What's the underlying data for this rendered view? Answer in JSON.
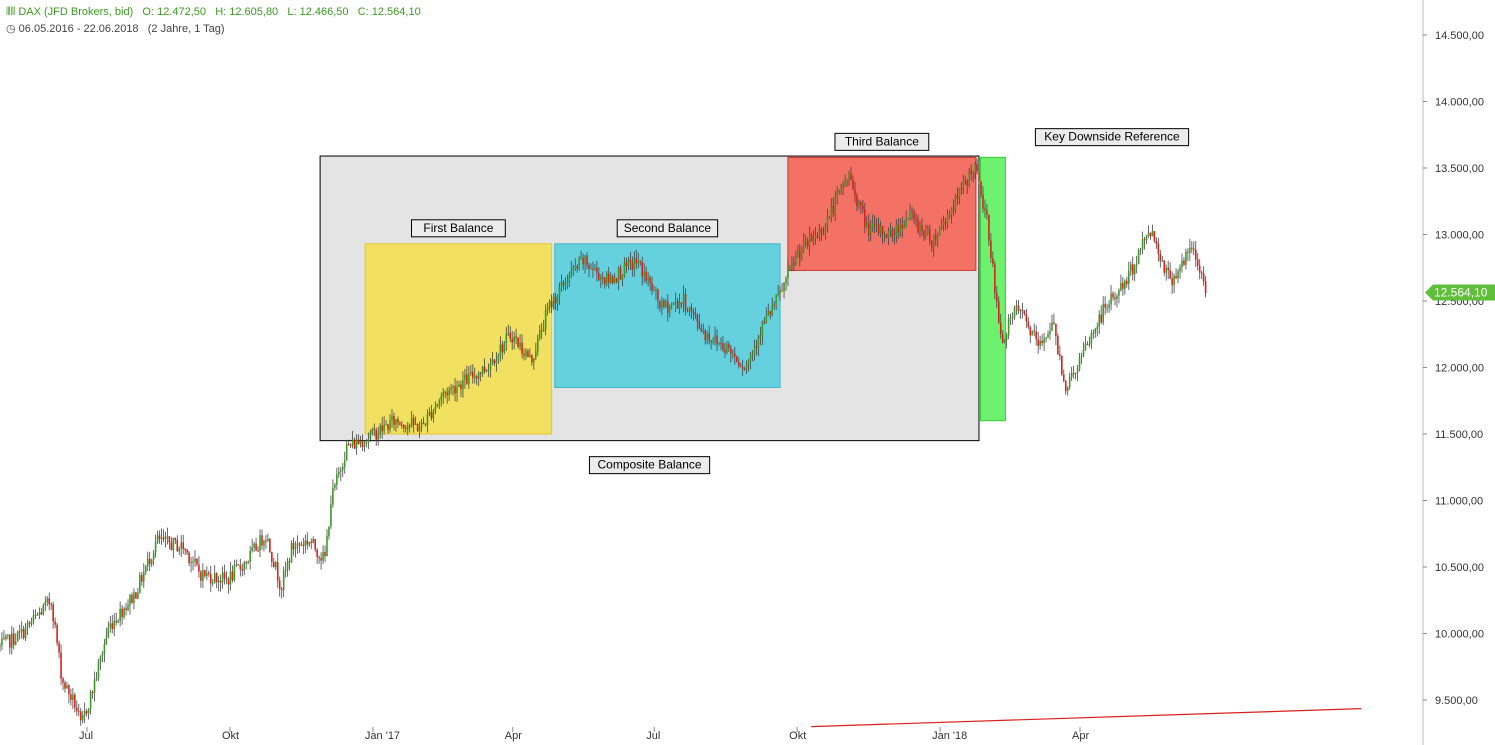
{
  "header": {
    "instrument": "DAX (JFD Brokers, bid)",
    "open": "O: 12.472,50",
    "high": "H: 12.605,80",
    "low": "L: 12.466,50",
    "close": "C: 12.564,10",
    "range": "06.05.2016 - 22.06.2018",
    "span": "(2 Jahre, 1 Tag)"
  },
  "colors": {
    "up": "#3c9a23",
    "down": "#d9221c",
    "last_price_tag": "#5fbf3a"
  },
  "chart_data": {
    "type": "candlestick",
    "x_ticks": [
      "Jul",
      "Okt",
      "Jan '17",
      "Apr",
      "Jul",
      "Okt",
      "Jan '18",
      "Apr"
    ],
    "y_ticks": [
      "14.500,00",
      "14.000,00",
      "13.500,00",
      "13.000,00",
      "12.500,00",
      "12.000,00",
      "11.500,00",
      "11.000,00",
      "10.500,00",
      "10.000,00",
      "9.500,00"
    ],
    "ylim": [
      9300,
      14750
    ],
    "last_price": "12.564,10",
    "price_path": [
      [
        "2016-05-06",
        9900
      ],
      [
        "2016-05-20",
        10000
      ],
      [
        "2016-06-08",
        10250
      ],
      [
        "2016-06-15",
        9650
      ],
      [
        "2016-06-24",
        9450
      ],
      [
        "2016-06-27",
        9300
      ],
      [
        "2016-07-04",
        9550
      ],
      [
        "2016-07-15",
        10050
      ],
      [
        "2016-08-01",
        10300
      ],
      [
        "2016-08-15",
        10700
      ],
      [
        "2016-09-01",
        10650
      ],
      [
        "2016-09-12",
        10450
      ],
      [
        "2016-09-29",
        10400
      ],
      [
        "2016-10-12",
        10550
      ],
      [
        "2016-10-24",
        10750
      ],
      [
        "2016-11-03",
        10350
      ],
      [
        "2016-11-10",
        10650
      ],
      [
        "2016-11-21",
        10700
      ],
      [
        "2016-12-01",
        10550
      ],
      [
        "2016-12-05",
        11000
      ],
      [
        "2016-12-15",
        11400
      ],
      [
        "2016-12-30",
        11480
      ],
      [
        "2017-01-15",
        11600
      ],
      [
        "2017-02-01",
        11550
      ],
      [
        "2017-02-15",
        11800
      ],
      [
        "2017-03-01",
        11900
      ],
      [
        "2017-03-15",
        12000
      ],
      [
        "2017-03-31",
        12250
      ],
      [
        "2017-04-13",
        12050
      ],
      [
        "2017-04-24",
        12450
      ],
      [
        "2017-05-08",
        12700
      ],
      [
        "2017-05-16",
        12800
      ],
      [
        "2017-06-01",
        12650
      ],
      [
        "2017-06-20",
        12800
      ],
      [
        "2017-07-06",
        12450
      ],
      [
        "2017-07-20",
        12500
      ],
      [
        "2017-08-03",
        12250
      ],
      [
        "2017-08-17",
        12150
      ],
      [
        "2017-08-29",
        12000
      ],
      [
        "2017-09-08",
        12300
      ],
      [
        "2017-09-20",
        12550
      ],
      [
        "2017-10-01",
        12850
      ],
      [
        "2017-10-18",
        13050
      ],
      [
        "2017-11-03",
        13450
      ],
      [
        "2017-11-15",
        13050
      ],
      [
        "2017-12-01",
        13000
      ],
      [
        "2017-12-12",
        13150
      ],
      [
        "2017-12-27",
        12950
      ],
      [
        "2018-01-11",
        13250
      ],
      [
        "2018-01-23",
        13520
      ],
      [
        "2018-02-01",
        13050
      ],
      [
        "2018-02-09",
        12200
      ],
      [
        "2018-02-20",
        12450
      ],
      [
        "2018-03-06",
        12150
      ],
      [
        "2018-03-14",
        12350
      ],
      [
        "2018-03-23",
        11850
      ],
      [
        "2018-04-03",
        12100
      ],
      [
        "2018-04-17",
        12450
      ],
      [
        "2018-05-01",
        12650
      ],
      [
        "2018-05-16",
        13050
      ],
      [
        "2018-05-29",
        12650
      ],
      [
        "2018-06-07",
        12800
      ],
      [
        "2018-06-12",
        12900
      ],
      [
        "2018-06-22",
        12564
      ]
    ],
    "annotations": [
      {
        "label": "Composite Balance",
        "color": "#e4e4e4",
        "border": "#000000",
        "x": [
          "2016-11-28",
          "2018-01-26"
        ],
        "y": [
          11450,
          13590
        ]
      },
      {
        "label": "First Balance",
        "color": "#f2e05a",
        "border": "#e7c62a",
        "x": [
          "2016-12-27",
          "2017-04-26"
        ],
        "y": [
          11500,
          12930
        ]
      },
      {
        "label": "Second Balance",
        "color": "#5ed0de",
        "border": "#3cb6c8",
        "x": [
          "2017-04-28",
          "2017-09-20"
        ],
        "y": [
          11850,
          12930
        ]
      },
      {
        "label": "Third Balance",
        "color": "#f36b5e",
        "border": "#c8342a",
        "x": [
          "2017-09-25",
          "2018-01-24"
        ],
        "y": [
          12730,
          13580
        ]
      },
      {
        "label": "",
        "color": "#66f066",
        "border": "#33cc33",
        "x": [
          "2018-01-27",
          "2018-02-12"
        ],
        "y": [
          11600,
          13580
        ]
      },
      {
        "label": "Key Downside Reference",
        "color": "#ffffff",
        "border": "#000000",
        "x": [
          "2018-04-01",
          "2018-04-01"
        ],
        "y": [
          13450,
          13450
        ]
      }
    ],
    "trendline": {
      "color": "#d9221c",
      "points": [
        [
          "2017-10-10",
          9300
        ],
        [
          "2018-09-29",
          9435
        ]
      ]
    }
  }
}
